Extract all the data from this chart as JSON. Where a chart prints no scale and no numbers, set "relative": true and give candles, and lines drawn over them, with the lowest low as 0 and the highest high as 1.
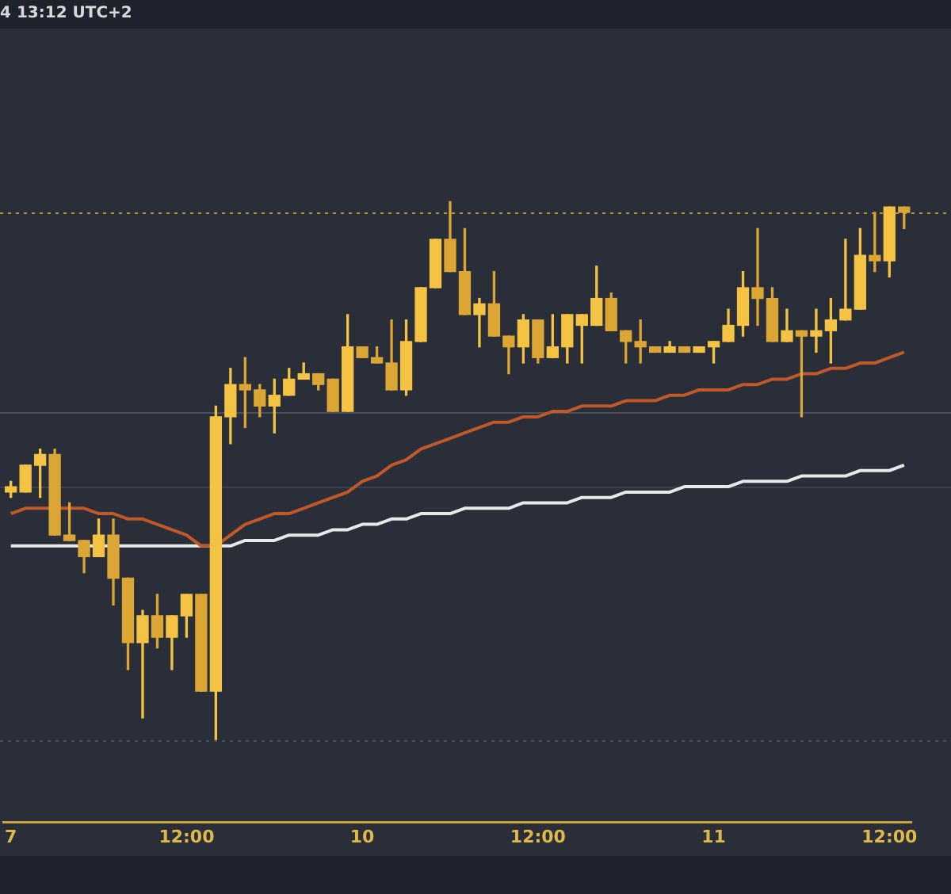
{
  "chart_data": {
    "type": "candlestick",
    "relative": true,
    "annotations": [
      "4 13:12 UTC+2"
    ],
    "categories": [
      "7",
      null,
      null,
      null,
      null,
      null,
      null,
      null,
      null,
      null,
      null,
      null,
      "12:00",
      null,
      null,
      null,
      null,
      null,
      null,
      null,
      null,
      null,
      null,
      null,
      "10",
      null,
      null,
      null,
      null,
      null,
      null,
      null,
      null,
      null,
      null,
      null,
      "12:00",
      null,
      null,
      null,
      null,
      null,
      null,
      null,
      null,
      null,
      null,
      null,
      "11",
      null,
      null,
      null,
      null,
      null,
      null,
      null,
      null,
      null,
      null,
      null,
      "12:00",
      null
    ],
    "ohlc": [
      [
        0.46,
        0.48,
        0.45,
        0.47
      ],
      [
        0.46,
        0.51,
        0.46,
        0.51
      ],
      [
        0.51,
        0.54,
        0.45,
        0.53
      ],
      [
        0.53,
        0.54,
        0.38,
        0.38
      ],
      [
        0.38,
        0.44,
        0.37,
        0.37
      ],
      [
        0.37,
        0.37,
        0.31,
        0.34
      ],
      [
        0.34,
        0.41,
        0.34,
        0.38
      ],
      [
        0.38,
        0.41,
        0.25,
        0.3
      ],
      [
        0.3,
        0.3,
        0.13,
        0.18
      ],
      [
        0.18,
        0.24,
        0.04,
        0.23
      ],
      [
        0.23,
        0.27,
        0.17,
        0.19
      ],
      [
        0.19,
        0.23,
        0.13,
        0.23
      ],
      [
        0.23,
        0.27,
        0.19,
        0.27
      ],
      [
        0.27,
        0.27,
        0.09,
        0.09
      ],
      [
        0.09,
        0.62,
        0,
        0.6
      ],
      [
        0.6,
        0.69,
        0.55,
        0.66
      ],
      [
        0.66,
        0.71,
        0.58,
        0.65
      ],
      [
        0.65,
        0.66,
        0.6,
        0.62
      ],
      [
        0.62,
        0.67,
        0.57,
        0.64
      ],
      [
        0.64,
        0.69,
        0.64,
        0.67
      ],
      [
        0.67,
        0.7,
        0.67,
        0.68
      ],
      [
        0.68,
        0.68,
        0.65,
        0.66
      ],
      [
        0.67,
        0.67,
        0.61,
        0.61
      ],
      [
        0.61,
        0.79,
        0.61,
        0.73
      ],
      [
        0.73,
        0.73,
        0.71,
        0.71
      ],
      [
        0.71,
        0.73,
        0.7,
        0.7
      ],
      [
        0.7,
        0.78,
        0.65,
        0.65
      ],
      [
        0.65,
        0.78,
        0.64,
        0.74
      ],
      [
        0.74,
        0.84,
        0.74,
        0.84
      ],
      [
        0.84,
        0.93,
        0.84,
        0.93
      ],
      [
        0.93,
        1,
        0.87,
        0.87
      ],
      [
        0.87,
        0.95,
        0.79,
        0.79
      ],
      [
        0.79,
        0.82,
        0.73,
        0.81
      ],
      [
        0.81,
        0.87,
        0.75,
        0.75
      ],
      [
        0.75,
        0.75,
        0.68,
        0.73
      ],
      [
        0.73,
        0.79,
        0.7,
        0.78
      ],
      [
        0.78,
        0.78,
        0.7,
        0.71
      ],
      [
        0.71,
        0.79,
        0.71,
        0.73
      ],
      [
        0.73,
        0.79,
        0.7,
        0.79
      ],
      [
        0.77,
        0.79,
        0.7,
        0.79
      ],
      [
        0.77,
        0.88,
        0.77,
        0.82
      ],
      [
        0.82,
        0.83,
        0.76,
        0.76
      ],
      [
        0.76,
        0.76,
        0.7,
        0.74
      ],
      [
        0.74,
        0.78,
        0.7,
        0.73
      ],
      [
        0.73,
        0.73,
        0.72,
        0.72
      ],
      [
        0.72,
        0.74,
        0.72,
        0.73
      ],
      [
        0.73,
        0.73,
        0.72,
        0.72
      ],
      [
        0.72,
        0.73,
        0.72,
        0.73
      ],
      [
        0.73,
        0.74,
        0.7,
        0.74
      ],
      [
        0.74,
        0.8,
        0.74,
        0.77
      ],
      [
        0.77,
        0.87,
        0.75,
        0.84
      ],
      [
        0.84,
        0.95,
        0.77,
        0.82
      ],
      [
        0.82,
        0.84,
        0.74,
        0.74
      ],
      [
        0.74,
        0.8,
        0.74,
        0.76
      ],
      [
        0.76,
        0.76,
        0.6,
        0.75
      ],
      [
        0.75,
        0.8,
        0.72,
        0.76
      ],
      [
        0.76,
        0.82,
        0.7,
        0.78
      ],
      [
        0.78,
        0.93,
        0.78,
        0.8
      ],
      [
        0.8,
        0.95,
        0.8,
        0.9
      ],
      [
        0.9,
        0.98,
        0.87,
        0.89
      ],
      [
        0.89,
        0.99,
        0.86,
        0.99
      ],
      [
        0.99,
        0.99,
        0.95,
        0.98
      ]
    ],
    "colors": [
      "#f5c344",
      "#f5c344",
      "#f5c344",
      "#dba633",
      "#dba633",
      "#dba633",
      "#f5c344",
      "#dba633",
      "#dba633",
      "#f5c344",
      "#dba633",
      "#f5c344",
      "#f5c344",
      "#dba633",
      "#f5c344",
      "#f5c344",
      "#dba633",
      "#dba633",
      "#f5c344",
      "#f5c344",
      "#f5c344",
      "#dba633",
      "#dba633",
      "#f5c344",
      "#dba633",
      "#dba633",
      "#dba633",
      "#f5c344",
      "#f5c344",
      "#f5c344",
      "#dba633",
      "#dba633",
      "#f5c344",
      "#dba633",
      "#dba633",
      "#f5c344",
      "#dba633",
      "#f5c344",
      "#f5c344",
      "#f5c344",
      "#f5c344",
      "#dba633",
      "#dba633",
      "#dba633",
      "#dba633",
      "#f5c344",
      "#dba633",
      "#f5c344",
      "#f5c344",
      "#f5c344",
      "#f5c344",
      "#dba633",
      "#dba633",
      "#f5c344",
      "#dba633",
      "#f5c344",
      "#f5c344",
      "#f5c344",
      "#f5c344",
      "#dba633",
      "#f5c344",
      "#dba633"
    ],
    "series": [
      {
        "type": "line",
        "color": "#c0582a",
        "values": [
          0.42,
          0.43,
          0.43,
          0.43,
          0.43,
          0.43,
          0.42,
          0.42,
          0.41,
          0.41,
          0.4,
          0.39,
          0.38,
          0.36,
          0.36,
          0.38,
          0.4,
          0.41,
          0.42,
          0.42,
          0.43,
          0.44,
          0.45,
          0.46,
          0.48,
          0.49,
          0.51,
          0.52,
          0.54,
          0.55,
          0.56,
          0.57,
          0.58,
          0.59,
          0.59,
          0.6,
          0.6,
          0.61,
          0.61,
          0.62,
          0.62,
          0.62,
          0.63,
          0.63,
          0.63,
          0.64,
          0.64,
          0.65,
          0.65,
          0.65,
          0.66,
          0.66,
          0.67,
          0.67,
          0.68,
          0.68,
          0.69,
          0.69,
          0.7,
          0.7,
          0.71,
          0.72
        ]
      },
      {
        "type": "line",
        "color": "#e8e8e8",
        "values": [
          0.36,
          0.36,
          0.36,
          0.36,
          0.36,
          0.36,
          0.36,
          0.36,
          0.36,
          0.36,
          0.36,
          0.36,
          0.36,
          0.36,
          0.36,
          0.36,
          0.37,
          0.37,
          0.37,
          0.38,
          0.38,
          0.38,
          0.39,
          0.39,
          0.4,
          0.4,
          0.41,
          0.41,
          0.42,
          0.42,
          0.42,
          0.43,
          0.43,
          0.43,
          0.43,
          0.44,
          0.44,
          0.44,
          0.44,
          0.45,
          0.45,
          0.45,
          0.46,
          0.46,
          0.46,
          0.46,
          0.47,
          0.47,
          0.47,
          0.47,
          0.48,
          0.48,
          0.48,
          0.48,
          0.49,
          0.49,
          0.49,
          0.49,
          0.5,
          0.5,
          0.5,
          0.51
        ]
      }
    ],
    "ref_lines": [
      {
        "axis": "y",
        "value": 0.98,
        "color": "#b8913a",
        "line_style": "dotted"
      },
      {
        "axis": "y",
        "value": 0.61,
        "color": "#4a4f5c",
        "line_style": "solid"
      },
      {
        "axis": "y",
        "value": 0.47,
        "color": "#3c414e",
        "line_style": "solid"
      },
      {
        "axis": "y",
        "value": 0,
        "color": "#4a4f5c",
        "line_style": "dotted"
      }
    ]
  }
}
